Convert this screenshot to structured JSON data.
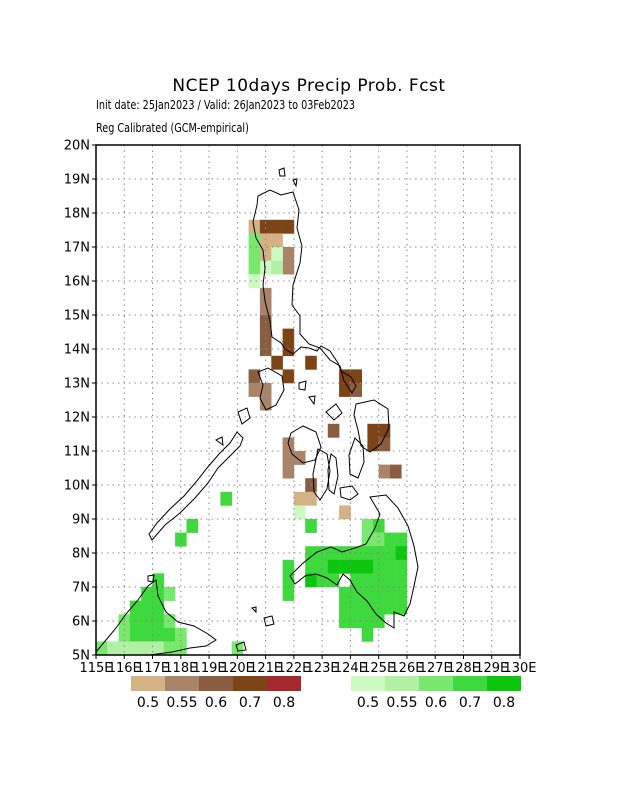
{
  "header": {
    "title": "NCEP 10days Precip Prob. Fcst",
    "subtitle1": "Init date: 25Jan2023 / Valid: 26Jan2023 to 03Feb2023",
    "subtitle2": "Reg Calibrated (GCM-empirical)"
  },
  "map": {
    "lon_range": [
      115,
      130
    ],
    "lat_range": [
      5,
      20
    ],
    "cell_size_deg": 0.4,
    "lat_ticks": [
      "5N",
      "6N",
      "7N",
      "8N",
      "9N",
      "10N",
      "11N",
      "12N",
      "13N",
      "14N",
      "15N",
      "16N",
      "17N",
      "18N",
      "19N",
      "20N"
    ],
    "lon_ticks": [
      "115E",
      "116E",
      "117E",
      "118E",
      "119E",
      "120E",
      "121E",
      "122E",
      "123E",
      "124E",
      "125E",
      "126E",
      "127E",
      "128E",
      "129E",
      "130E"
    ],
    "grid": "dotted",
    "dry_colors": [
      "#d5b285",
      "#a98468",
      "#8a5d40",
      "#7d4418",
      "#a3292d"
    ],
    "wet_colors": [
      "#cdf9c3",
      "#b2f0a5",
      "#7ae86f",
      "#3ed93d",
      "#0cc50d"
    ],
    "dry_cells": [
      {
        "lon": 120.6,
        "lat": 17.6,
        "cat": 0
      },
      {
        "lon": 121.0,
        "lat": 17.6,
        "cat": 3
      },
      {
        "lon": 121.4,
        "lat": 17.6,
        "cat": 3
      },
      {
        "lon": 121.8,
        "lat": 17.6,
        "cat": 3
      },
      {
        "lon": 121.0,
        "lat": 17.2,
        "cat": 0
      },
      {
        "lon": 121.4,
        "lat": 17.2,
        "cat": 0
      },
      {
        "lon": 121.0,
        "lat": 16.8,
        "cat": 0
      },
      {
        "lon": 121.8,
        "lat": 16.8,
        "cat": 1
      },
      {
        "lon": 121.8,
        "lat": 16.4,
        "cat": 1
      },
      {
        "lon": 121.0,
        "lat": 15.6,
        "cat": 1
      },
      {
        "lon": 121.0,
        "lat": 15.2,
        "cat": 1
      },
      {
        "lon": 121.0,
        "lat": 14.8,
        "cat": 2
      },
      {
        "lon": 121.0,
        "lat": 14.4,
        "cat": 2
      },
      {
        "lon": 121.8,
        "lat": 14.4,
        "cat": 3
      },
      {
        "lon": 121.0,
        "lat": 14.0,
        "cat": 2
      },
      {
        "lon": 121.4,
        "lat": 13.6,
        "cat": 3
      },
      {
        "lon": 121.8,
        "lat": 14.0,
        "cat": 3
      },
      {
        "lon": 122.6,
        "lat": 13.6,
        "cat": 3
      },
      {
        "lon": 120.6,
        "lat": 13.2,
        "cat": 2
      },
      {
        "lon": 121.8,
        "lat": 13.2,
        "cat": 3
      },
      {
        "lon": 120.6,
        "lat": 12.8,
        "cat": 1
      },
      {
        "lon": 121.0,
        "lat": 12.8,
        "cat": 1
      },
      {
        "lon": 121.0,
        "lat": 12.4,
        "cat": 1
      },
      {
        "lon": 123.8,
        "lat": 13.2,
        "cat": 3
      },
      {
        "lon": 124.2,
        "lat": 13.2,
        "cat": 3
      },
      {
        "lon": 123.8,
        "lat": 12.8,
        "cat": 3
      },
      {
        "lon": 124.2,
        "lat": 12.8,
        "cat": 2
      },
      {
        "lon": 123.4,
        "lat": 11.6,
        "cat": 2
      },
      {
        "lon": 124.8,
        "lat": 11.6,
        "cat": 3
      },
      {
        "lon": 125.2,
        "lat": 11.6,
        "cat": 3
      },
      {
        "lon": 124.8,
        "lat": 11.2,
        "cat": 3
      },
      {
        "lon": 125.2,
        "lat": 11.2,
        "cat": 2
      },
      {
        "lon": 121.8,
        "lat": 11.2,
        "cat": 1
      },
      {
        "lon": 121.8,
        "lat": 10.8,
        "cat": 1
      },
      {
        "lon": 122.2,
        "lat": 10.8,
        "cat": 1
      },
      {
        "lon": 121.8,
        "lat": 10.4,
        "cat": 1
      },
      {
        "lon": 122.6,
        "lat": 10.0,
        "cat": 2
      },
      {
        "lon": 125.2,
        "lat": 10.4,
        "cat": 1
      },
      {
        "lon": 125.6,
        "lat": 10.4,
        "cat": 2
      },
      {
        "lon": 122.2,
        "lat": 9.6,
        "cat": 0
      },
      {
        "lon": 122.6,
        "lat": 9.6,
        "cat": 0
      },
      {
        "lon": 123.8,
        "lat": 9.2,
        "cat": 0
      }
    ],
    "wet_cells": [
      {
        "lon": 120.6,
        "lat": 17.2,
        "cat": 2
      },
      {
        "lon": 120.6,
        "lat": 16.8,
        "cat": 2
      },
      {
        "lon": 121.4,
        "lat": 16.4,
        "cat": 1
      },
      {
        "lon": 121.0,
        "lat": 16.4,
        "cat": 0
      },
      {
        "lon": 120.6,
        "lat": 16.4,
        "cat": 2
      },
      {
        "lon": 120.6,
        "lat": 16.0,
        "cat": 0
      },
      {
        "lon": 121.4,
        "lat": 16.8,
        "cat": 0
      },
      {
        "lon": 122.2,
        "lat": 9.2,
        "cat": 0
      },
      {
        "lon": 122.6,
        "lat": 8.8,
        "cat": 3
      },
      {
        "lon": 119.6,
        "lat": 9.6,
        "cat": 3
      },
      {
        "lon": 118.4,
        "lat": 8.8,
        "cat": 3
      },
      {
        "lon": 118.0,
        "lat": 8.4,
        "cat": 3
      },
      {
        "lon": 124.6,
        "lat": 8.8,
        "cat": 2
      },
      {
        "lon": 125.0,
        "lat": 8.8,
        "cat": 3
      },
      {
        "lon": 124.6,
        "lat": 8.4,
        "cat": 2
      },
      {
        "lon": 125.0,
        "lat": 8.4,
        "cat": 2
      },
      {
        "lon": 125.4,
        "lat": 8.4,
        "cat": 3
      },
      {
        "lon": 125.8,
        "lat": 8.4,
        "cat": 3
      },
      {
        "lon": 122.6,
        "lat": 8.0,
        "cat": 3
      },
      {
        "lon": 123.0,
        "lat": 8.0,
        "cat": 3
      },
      {
        "lon": 123.4,
        "lat": 8.0,
        "cat": 3
      },
      {
        "lon": 123.8,
        "lat": 8.0,
        "cat": 3
      },
      {
        "lon": 124.2,
        "lat": 8.0,
        "cat": 3
      },
      {
        "lon": 124.6,
        "lat": 8.0,
        "cat": 3
      },
      {
        "lon": 125.0,
        "lat": 8.0,
        "cat": 3
      },
      {
        "lon": 125.4,
        "lat": 8.0,
        "cat": 3
      },
      {
        "lon": 125.8,
        "lat": 8.0,
        "cat": 4
      },
      {
        "lon": 121.8,
        "lat": 7.6,
        "cat": 3
      },
      {
        "lon": 122.6,
        "lat": 7.6,
        "cat": 3
      },
      {
        "lon": 123.0,
        "lat": 7.6,
        "cat": 3
      },
      {
        "lon": 123.4,
        "lat": 7.6,
        "cat": 4
      },
      {
        "lon": 123.8,
        "lat": 7.6,
        "cat": 4
      },
      {
        "lon": 124.2,
        "lat": 7.6,
        "cat": 4
      },
      {
        "lon": 124.6,
        "lat": 7.6,
        "cat": 4
      },
      {
        "lon": 125.0,
        "lat": 7.6,
        "cat": 3
      },
      {
        "lon": 125.4,
        "lat": 7.6,
        "cat": 3
      },
      {
        "lon": 125.8,
        "lat": 7.6,
        "cat": 3
      },
      {
        "lon": 121.8,
        "lat": 7.2,
        "cat": 3
      },
      {
        "lon": 122.6,
        "lat": 7.2,
        "cat": 4
      },
      {
        "lon": 123.0,
        "lat": 7.2,
        "cat": 3
      },
      {
        "lon": 123.4,
        "lat": 7.2,
        "cat": 3
      },
      {
        "lon": 124.2,
        "lat": 7.2,
        "cat": 3
      },
      {
        "lon": 124.6,
        "lat": 7.2,
        "cat": 3
      },
      {
        "lon": 125.0,
        "lat": 7.2,
        "cat": 3
      },
      {
        "lon": 125.4,
        "lat": 7.2,
        "cat": 3
      },
      {
        "lon": 125.8,
        "lat": 7.2,
        "cat": 3
      },
      {
        "lon": 121.8,
        "lat": 6.8,
        "cat": 3
      },
      {
        "lon": 123.8,
        "lat": 6.8,
        "cat": 3
      },
      {
        "lon": 124.2,
        "lat": 6.8,
        "cat": 3
      },
      {
        "lon": 124.6,
        "lat": 6.8,
        "cat": 3
      },
      {
        "lon": 125.0,
        "lat": 6.8,
        "cat": 3
      },
      {
        "lon": 125.4,
        "lat": 6.8,
        "cat": 3
      },
      {
        "lon": 125.8,
        "lat": 6.8,
        "cat": 3
      },
      {
        "lon": 123.8,
        "lat": 6.4,
        "cat": 3
      },
      {
        "lon": 124.2,
        "lat": 6.4,
        "cat": 3
      },
      {
        "lon": 124.6,
        "lat": 6.4,
        "cat": 3
      },
      {
        "lon": 125.0,
        "lat": 6.4,
        "cat": 3
      },
      {
        "lon": 125.4,
        "lat": 6.4,
        "cat": 3
      },
      {
        "lon": 125.8,
        "lat": 6.4,
        "cat": 3
      },
      {
        "lon": 123.8,
        "lat": 6.0,
        "cat": 3
      },
      {
        "lon": 124.2,
        "lat": 6.0,
        "cat": 3
      },
      {
        "lon": 124.6,
        "lat": 6.0,
        "cat": 3
      },
      {
        "lon": 125.0,
        "lat": 6.0,
        "cat": 3
      },
      {
        "lon": 124.6,
        "lat": 5.6,
        "cat": 3
      },
      {
        "lon": 117.2,
        "lat": 7.2,
        "cat": 3
      },
      {
        "lon": 117.2,
        "lat": 6.8,
        "cat": 3
      },
      {
        "lon": 117.6,
        "lat": 6.8,
        "cat": 2
      },
      {
        "lon": 116.8,
        "lat": 6.8,
        "cat": 3
      },
      {
        "lon": 116.4,
        "lat": 6.4,
        "cat": 3
      },
      {
        "lon": 116.8,
        "lat": 6.4,
        "cat": 3
      },
      {
        "lon": 117.2,
        "lat": 6.4,
        "cat": 3
      },
      {
        "lon": 116.0,
        "lat": 6.0,
        "cat": 2
      },
      {
        "lon": 116.4,
        "lat": 6.0,
        "cat": 3
      },
      {
        "lon": 116.8,
        "lat": 6.0,
        "cat": 3
      },
      {
        "lon": 117.2,
        "lat": 6.0,
        "cat": 3
      },
      {
        "lon": 117.6,
        "lat": 6.0,
        "cat": 2
      },
      {
        "lon": 116.0,
        "lat": 5.6,
        "cat": 2
      },
      {
        "lon": 116.4,
        "lat": 5.6,
        "cat": 3
      },
      {
        "lon": 116.8,
        "lat": 5.6,
        "cat": 3
      },
      {
        "lon": 117.2,
        "lat": 5.6,
        "cat": 3
      },
      {
        "lon": 117.6,
        "lat": 5.6,
        "cat": 3
      },
      {
        "lon": 118.0,
        "lat": 5.6,
        "cat": 2
      },
      {
        "lon": 115.2,
        "lat": 5.2,
        "cat": 2
      },
      {
        "lon": 115.6,
        "lat": 5.2,
        "cat": 1
      },
      {
        "lon": 116.0,
        "lat": 5.2,
        "cat": 1
      },
      {
        "lon": 116.4,
        "lat": 5.2,
        "cat": 1
      },
      {
        "lon": 116.8,
        "lat": 5.2,
        "cat": 1
      },
      {
        "lon": 117.2,
        "lat": 5.2,
        "cat": 1
      },
      {
        "lon": 117.6,
        "lat": 5.2,
        "cat": 2
      },
      {
        "lon": 118.0,
        "lat": 5.2,
        "cat": 2
      },
      {
        "lon": 120.0,
        "lat": 5.2,
        "cat": 2
      }
    ]
  },
  "legend": {
    "dry_labels": [
      "0.5",
      "0.55",
      "0.6",
      "0.7",
      "0.8"
    ],
    "wet_labels": [
      "0.5",
      "0.55",
      "0.6",
      "0.7",
      "0.8"
    ]
  }
}
